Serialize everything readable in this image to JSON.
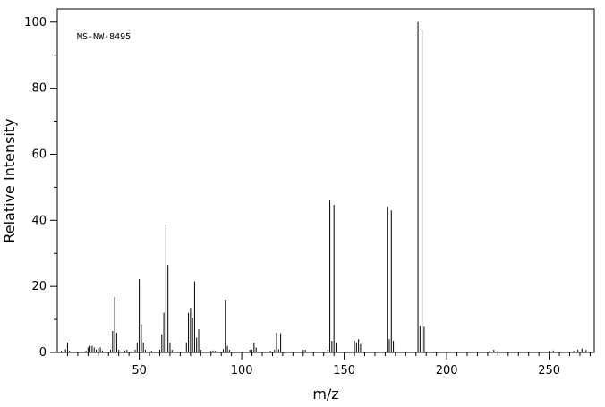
{
  "chart_data": {
    "type": "bar",
    "annotation": "MS-NW-8495",
    "xlabel": "m/z",
    "ylabel": "Relative Intensity",
    "xlim": [
      10,
      272
    ],
    "ylim": [
      0,
      104
    ],
    "xticks": [
      50,
      100,
      150,
      200,
      250
    ],
    "yticks": [
      0,
      20,
      40,
      60,
      80,
      100
    ],
    "grid": false,
    "peaks": [
      {
        "mz": 12,
        "intensity": 0.5
      },
      {
        "mz": 14,
        "intensity": 1.0
      },
      {
        "mz": 15,
        "intensity": 3.0
      },
      {
        "mz": 16,
        "intensity": 0.5
      },
      {
        "mz": 24,
        "intensity": 0.5
      },
      {
        "mz": 25,
        "intensity": 1.5
      },
      {
        "mz": 26,
        "intensity": 2.0
      },
      {
        "mz": 27,
        "intensity": 2.0
      },
      {
        "mz": 28,
        "intensity": 1.5
      },
      {
        "mz": 29,
        "intensity": 0.8
      },
      {
        "mz": 30,
        "intensity": 1.2
      },
      {
        "mz": 31,
        "intensity": 1.5
      },
      {
        "mz": 32,
        "intensity": 0.6
      },
      {
        "mz": 36,
        "intensity": 0.8
      },
      {
        "mz": 37,
        "intensity": 6.5
      },
      {
        "mz": 38,
        "intensity": 16.8
      },
      {
        "mz": 39,
        "intensity": 6.0
      },
      {
        "mz": 40,
        "intensity": 0.8
      },
      {
        "mz": 43,
        "intensity": 0.6
      },
      {
        "mz": 44,
        "intensity": 0.8
      },
      {
        "mz": 48,
        "intensity": 0.8
      },
      {
        "mz": 49,
        "intensity": 3.0
      },
      {
        "mz": 50,
        "intensity": 22.2
      },
      {
        "mz": 51,
        "intensity": 8.5
      },
      {
        "mz": 52,
        "intensity": 3.0
      },
      {
        "mz": 53,
        "intensity": 0.8
      },
      {
        "mz": 56,
        "intensity": 0.5
      },
      {
        "mz": 60,
        "intensity": 0.8
      },
      {
        "mz": 61,
        "intensity": 5.5
      },
      {
        "mz": 62,
        "intensity": 12.0
      },
      {
        "mz": 63,
        "intensity": 38.8
      },
      {
        "mz": 64,
        "intensity": 26.5
      },
      {
        "mz": 65,
        "intensity": 3.0
      },
      {
        "mz": 66,
        "intensity": 0.8
      },
      {
        "mz": 73,
        "intensity": 3.0
      },
      {
        "mz": 74,
        "intensity": 12.0
      },
      {
        "mz": 75,
        "intensity": 13.5
      },
      {
        "mz": 76,
        "intensity": 10.5
      },
      {
        "mz": 77,
        "intensity": 21.5
      },
      {
        "mz": 78,
        "intensity": 4.5
      },
      {
        "mz": 79,
        "intensity": 7.0
      },
      {
        "mz": 80,
        "intensity": 0.8
      },
      {
        "mz": 85,
        "intensity": 0.5
      },
      {
        "mz": 86,
        "intensity": 0.6
      },
      {
        "mz": 87,
        "intensity": 0.5
      },
      {
        "mz": 91,
        "intensity": 1.0
      },
      {
        "mz": 92,
        "intensity": 16.0
      },
      {
        "mz": 93,
        "intensity": 2.0
      },
      {
        "mz": 94,
        "intensity": 0.8
      },
      {
        "mz": 104,
        "intensity": 0.8
      },
      {
        "mz": 105,
        "intensity": 0.8
      },
      {
        "mz": 106,
        "intensity": 3.0
      },
      {
        "mz": 107,
        "intensity": 1.5
      },
      {
        "mz": 114,
        "intensity": 0.5
      },
      {
        "mz": 116,
        "intensity": 0.8
      },
      {
        "mz": 117,
        "intensity": 6.0
      },
      {
        "mz": 118,
        "intensity": 1.0
      },
      {
        "mz": 119,
        "intensity": 5.8
      },
      {
        "mz": 130,
        "intensity": 0.8
      },
      {
        "mz": 131,
        "intensity": 0.8
      },
      {
        "mz": 142,
        "intensity": 0.8
      },
      {
        "mz": 143,
        "intensity": 46.0
      },
      {
        "mz": 144,
        "intensity": 3.5
      },
      {
        "mz": 145,
        "intensity": 44.7
      },
      {
        "mz": 146,
        "intensity": 3.0
      },
      {
        "mz": 155,
        "intensity": 3.5
      },
      {
        "mz": 156,
        "intensity": 3.0
      },
      {
        "mz": 157,
        "intensity": 4.0
      },
      {
        "mz": 158,
        "intensity": 2.5
      },
      {
        "mz": 171,
        "intensity": 44.2
      },
      {
        "mz": 172,
        "intensity": 4.0
      },
      {
        "mz": 173,
        "intensity": 43.0
      },
      {
        "mz": 174,
        "intensity": 3.5
      },
      {
        "mz": 186,
        "intensity": 100.0
      },
      {
        "mz": 187,
        "intensity": 8.0
      },
      {
        "mz": 188,
        "intensity": 97.5
      },
      {
        "mz": 189,
        "intensity": 7.8
      },
      {
        "mz": 221,
        "intensity": 0.5
      },
      {
        "mz": 223,
        "intensity": 0.8
      },
      {
        "mz": 225,
        "intensity": 0.5
      },
      {
        "mz": 250,
        "intensity": 0.5
      },
      {
        "mz": 252,
        "intensity": 0.6
      },
      {
        "mz": 262,
        "intensity": 0.5
      },
      {
        "mz": 264,
        "intensity": 0.8
      },
      {
        "mz": 266,
        "intensity": 1.2
      },
      {
        "mz": 268,
        "intensity": 0.8
      }
    ]
  }
}
